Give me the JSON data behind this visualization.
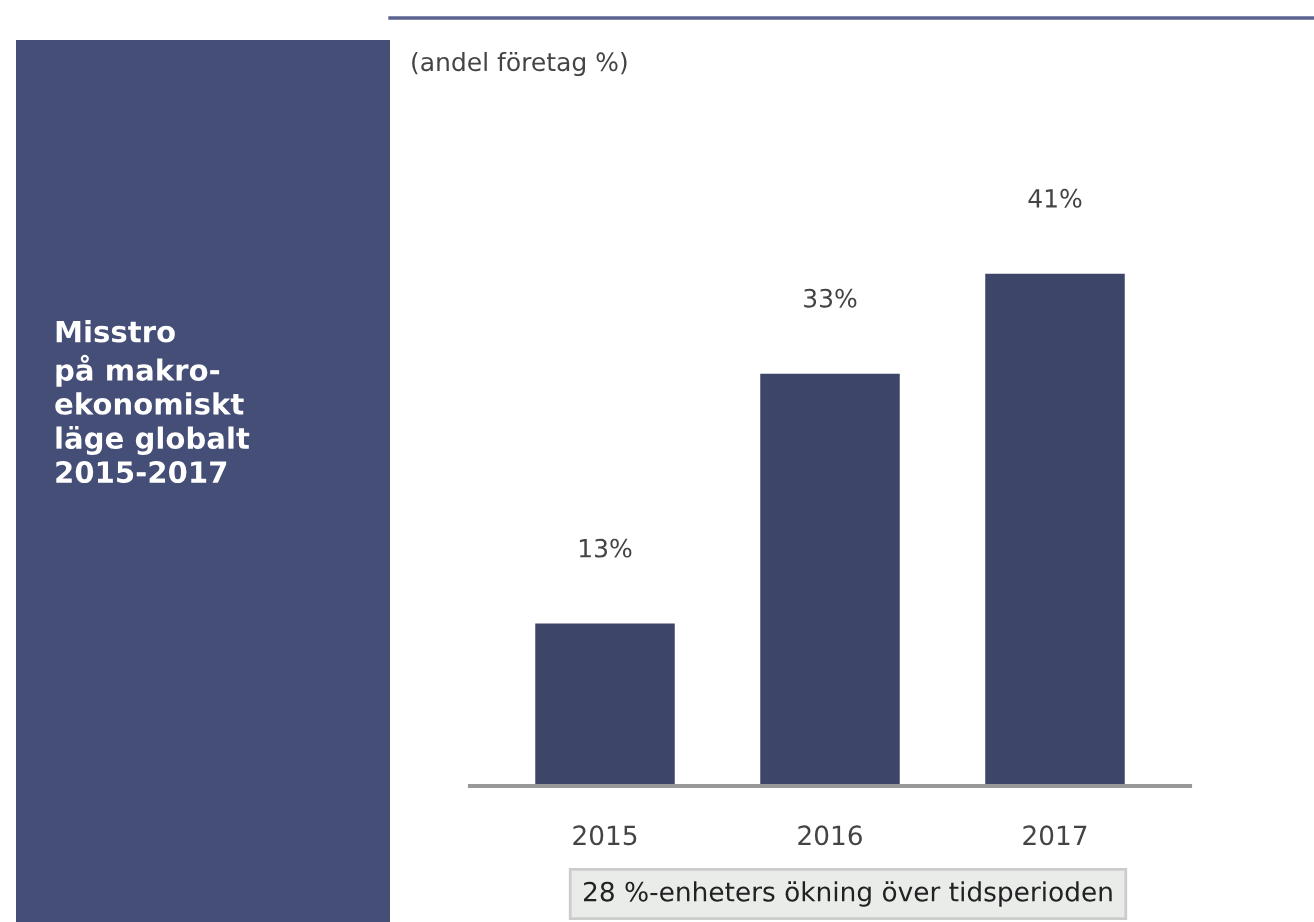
{
  "chart_data": {
    "type": "bar",
    "title": "Misstro\npå makro-\nekonomiskt\nläge globalt\n2015-2017",
    "subtitle": "(andel företag %)",
    "categories": [
      "2015",
      "2016",
      "2017"
    ],
    "values": [
      13,
      33,
      41
    ],
    "color": "#3d4569",
    "value_labels": [
      "13%",
      "33%",
      "41%"
    ],
    "tick_labels": "x",
    "annotations": [
      "28 %-enheters ökning över tidsperioden"
    ]
  }
}
